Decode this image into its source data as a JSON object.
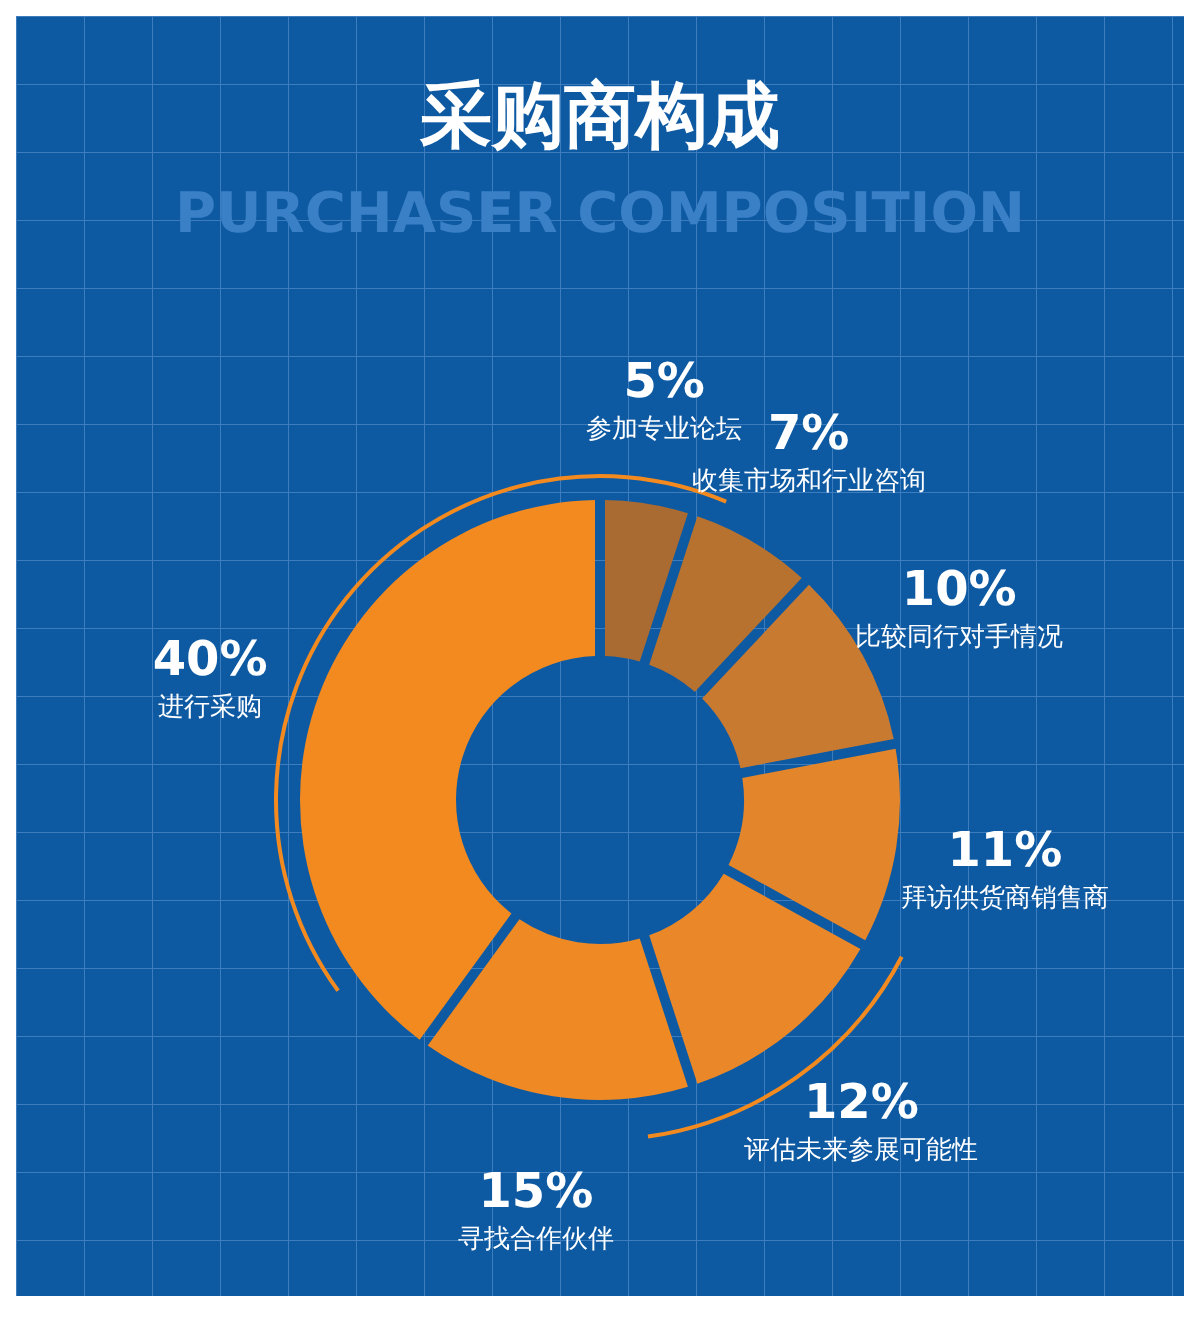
{
  "chart_data": {
    "type": "donut",
    "title": "采购商构成",
    "subtitle": "PURCHASER COMPOSITION",
    "categories": [
      "进行采购",
      "寻找合作伙伴",
      "评估未来参展可能性",
      "拜访供货商销售商",
      "比较同行对手情况",
      "收集市场和行业咨询",
      "参加专业论坛"
    ],
    "values": [
      40,
      15,
      12,
      11,
      10,
      7,
      5
    ],
    "value_labels": [
      "40%",
      "15%",
      "12%",
      "11%",
      "10%",
      "7%",
      "5%"
    ],
    "colors": [
      "#f28a1f",
      "#ee8924",
      "#ea8829",
      "#e3852b",
      "#c97a31",
      "#b8722f",
      "#a96b31"
    ]
  }
}
